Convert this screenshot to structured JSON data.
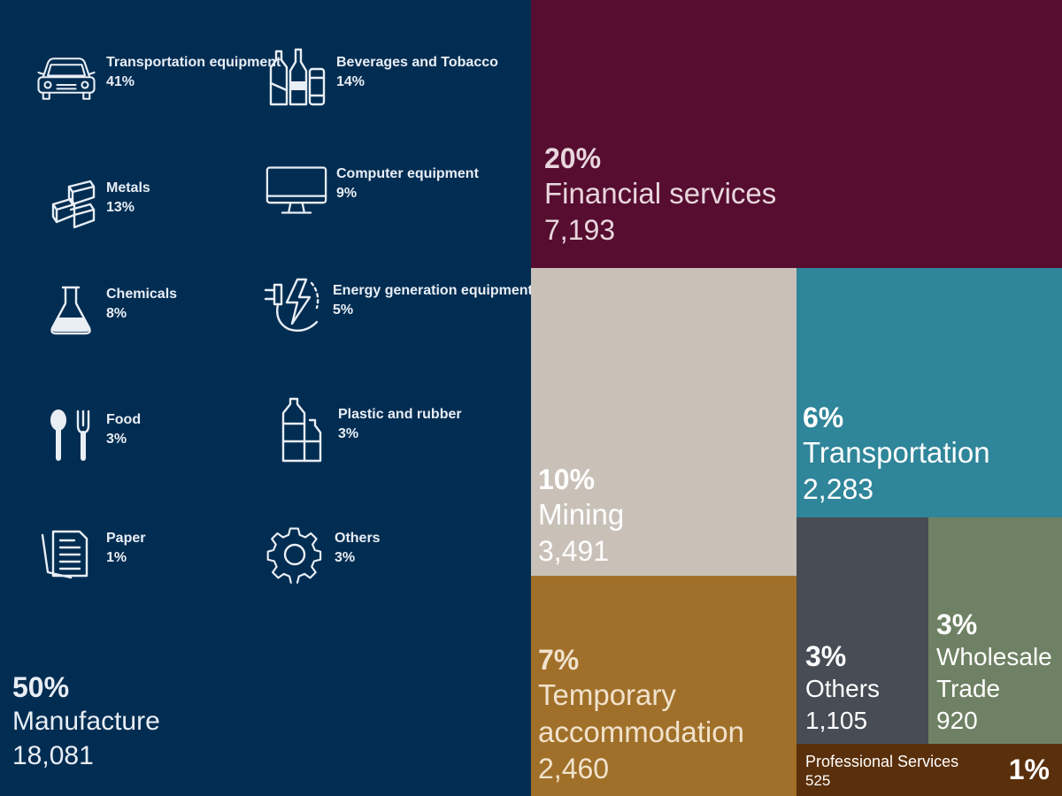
{
  "chart_data": {
    "type": "treemap",
    "tiles": [
      {
        "key": "manufacture",
        "pct": "50%",
        "name": "Manufacture",
        "value": "18,081",
        "color": "#022d52"
      },
      {
        "key": "financial",
        "pct": "20%",
        "name": "Financial services",
        "value": "7,193",
        "color": "#560d30"
      },
      {
        "key": "mining",
        "pct": "10%",
        "name": "Mining",
        "value": "3,491",
        "color": "#c9c1b8"
      },
      {
        "key": "temporary",
        "pct": "7%",
        "name": "Temporary accommodation",
        "value": "2,460",
        "color": "#a0702a"
      },
      {
        "key": "transportation",
        "pct": "6%",
        "name": "Transportation",
        "value": "2,283",
        "color": "#2f8599"
      },
      {
        "key": "others",
        "pct": "3%",
        "name": "Others",
        "value": "1,105",
        "color": "#474c55"
      },
      {
        "key": "wholesale",
        "pct": "3%",
        "name": "Wholesale Trade",
        "value": "920",
        "color": "#6f8164"
      },
      {
        "key": "professional",
        "pct": "1%",
        "name": "Professional Services",
        "value": "525",
        "color": "#5a2f0b"
      }
    ],
    "manufacture_breakdown": [
      {
        "icon": "car-icon",
        "label": "Transportation equipment",
        "pct": "41%"
      },
      {
        "icon": "bottles-icon",
        "label": "Beverages and Tobacco",
        "pct": "14%"
      },
      {
        "icon": "metal-bars-icon",
        "label": "Metals",
        "pct": "13%"
      },
      {
        "icon": "monitor-icon",
        "label": "Computer equipment",
        "pct": "9%"
      },
      {
        "icon": "flask-icon",
        "label": "Chemicals",
        "pct": "8%"
      },
      {
        "icon": "energy-plug-icon",
        "label": "Energy generation equipment",
        "pct": "5%"
      },
      {
        "icon": "spoon-fork-icon",
        "label": "Food",
        "pct": "3%"
      },
      {
        "icon": "plastic-bottles-icon",
        "label": "Plastic and rubber",
        "pct": "3%"
      },
      {
        "icon": "paper-icon",
        "label": "Paper",
        "pct": "1%"
      },
      {
        "icon": "gear-icon",
        "label": "Others",
        "pct": "3%"
      }
    ]
  }
}
